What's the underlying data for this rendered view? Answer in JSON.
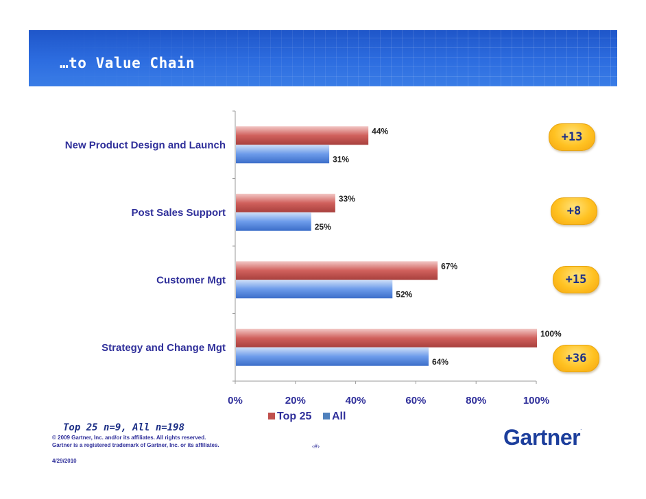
{
  "slide": {
    "title": "…to Value Chain",
    "sample_note": "Top 25 n=9, All n=198",
    "footer": {
      "copyright": "© 2009 Gartner, Inc. and/or its affiliates. All rights reserved.",
      "trademark": "Gartner is a registered trademark of Gartner, Inc. or its affiliates.",
      "page": "‹#›",
      "date": "4/29/2010"
    },
    "logo": "Gartner"
  },
  "badges": [
    "+13",
    "+8",
    "+15",
    "+36"
  ],
  "chart_data": {
    "type": "bar",
    "orientation": "horizontal",
    "categories": [
      "New Product Design and Launch",
      "Post Sales Support",
      "Customer Mgt",
      "Strategy and Change Mgt"
    ],
    "series": [
      {
        "name": "Top 25",
        "values": [
          44,
          33,
          67,
          100
        ],
        "labels": [
          "44%",
          "33%",
          "67%",
          "100%"
        ],
        "color": "#c0504d"
      },
      {
        "name": "All",
        "values": [
          31,
          25,
          52,
          64
        ],
        "labels": [
          "31%",
          "25%",
          "52%",
          "64%"
        ],
        "color": "#4f81bd"
      }
    ],
    "xlim": [
      0,
      100
    ],
    "xticks": [
      "0%",
      "20%",
      "40%",
      "60%",
      "80%",
      "100%"
    ],
    "legend": "bottom",
    "grid": false
  }
}
